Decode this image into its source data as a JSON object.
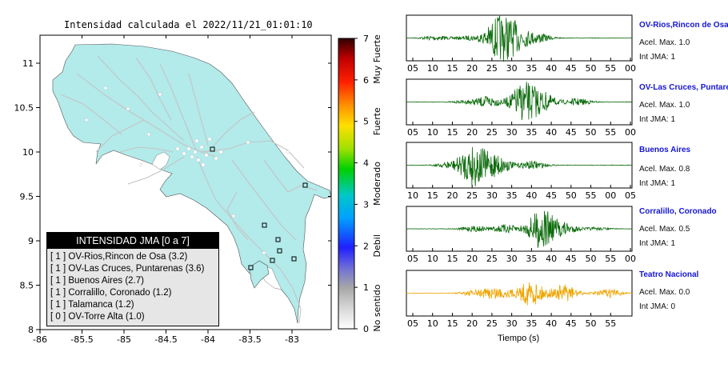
{
  "map": {
    "title": "Intensidad calculada el 2022/11/21_01:01:10",
    "x_ticks": [
      "-86",
      "-85.5",
      "-85",
      "-84.5",
      "-84",
      "-83.5",
      "-83"
    ],
    "y_ticks": [
      "11",
      "10.5",
      "10",
      "9.5",
      "9",
      "8.5",
      "8"
    ],
    "colors": {
      "land": "#b3eaea",
      "sea": "#ffffff",
      "roads": "#c4c4c4",
      "station_border": "#000000"
    }
  },
  "colorbar": {
    "ticks": [
      "0",
      "1",
      "2",
      "3",
      "4",
      "5",
      "6",
      "7"
    ],
    "labels": [
      "No sentido",
      "Debil",
      "Moderado",
      "Fuerte",
      "Muy Fuerte"
    ]
  },
  "legend": {
    "title": "INTENSIDAD JMA [0 a 7]",
    "items": [
      "[ 1 ]  OV-Rios,Rincon de Osa (3.2)",
      "[ 1 ]  OV-Las Cruces, Puntarenas (3.6)",
      "[ 1 ]  Buenos Aires (2.7)",
      "[ 1 ]  Corralillo, Coronado (1.2)",
      "[ 1 ]  Talamanca (1.2)",
      "[ 0 ]  OV-Torre Alta (1.0)"
    ]
  },
  "traces": [
    {
      "station": "OV-Rios,Rincon de Osa",
      "accel": "Acel. Max. 1.0",
      "jma": "Int JMA: 1",
      "ticks": [
        "05",
        "10",
        "15",
        "20",
        "25",
        "30",
        "35",
        "40",
        "45",
        "50",
        "55",
        "00"
      ],
      "color": "#0b6b0b"
    },
    {
      "station": "OV-Las Cruces, Puntarenas",
      "accel": "Acel. Max. 1.0",
      "jma": "Int JMA: 1",
      "ticks": [
        "05",
        "10",
        "15",
        "20",
        "25",
        "30",
        "35",
        "40",
        "45",
        "50",
        "55",
        "00"
      ],
      "color": "#0b6b0b"
    },
    {
      "station": "Buenos Aires",
      "accel": "Acel. Max. 0.8",
      "jma": "Int JMA: 1",
      "ticks": [
        "10",
        "15",
        "20",
        "25",
        "30",
        "35",
        "40",
        "45",
        "50",
        "55",
        "00",
        "05"
      ],
      "color": "#0b6b0b"
    },
    {
      "station": "Corralillo, Coronado",
      "accel": "Acel. Max. 0.5",
      "jma": "Int JMA: 1",
      "ticks": [
        "05",
        "10",
        "15",
        "20",
        "25",
        "30",
        "35",
        "40",
        "45",
        "50",
        "55",
        "00"
      ],
      "color": "#0b6b0b"
    },
    {
      "station": "Teatro Nacional",
      "accel": "Acel. Max. 0.0",
      "jma": "Int JMA: 0",
      "ticks": [
        "05",
        "10",
        "15",
        "20",
        "25",
        "30",
        "35",
        "40",
        "45",
        "50",
        "55"
      ],
      "color": "#f0a500"
    }
  ],
  "time_axis_label": "Tiempo (s)"
}
